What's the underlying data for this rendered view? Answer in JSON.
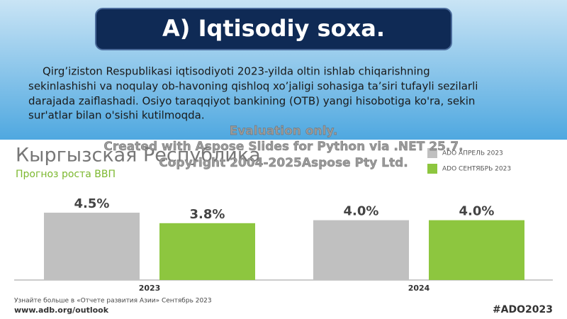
{
  "header": {
    "title": "A) Iqtisodiy soxa."
  },
  "paragraph": [
    "Qirg’iziston Respublikasi iqtisodiyoti 2023-yilda oltin ishlab chiqarishning",
    "sekinlashishi va noqulay ob-havoning qishloq xo’jaligi sohasiga ta’siri tufayli sezilarli",
    "darajada zaiflashadi. Osiyo taraqqiyot bankining (OTB) yangi hisobotiga ko'ra, sekin",
    "sur'atlar bilan o'sishi kutilmoqda."
  ],
  "watermark": [
    "Evaluation only.",
    "Created with Aspose Slides for Python via .NET 25.7.",
    "Copyright 2004-2025Aspose Pty Ltd."
  ],
  "chart_data": {
    "type": "bar",
    "title": "Кыргызская Республика",
    "subtitle": "Прогноз роста ВВП",
    "categories": [
      "2023",
      "2024"
    ],
    "series": [
      {
        "name": "ADO АПРЕЛЬ 2023",
        "color": "#c0c0c0",
        "values": [
          4.5,
          4.0
        ],
        "value_labels": [
          "4.5%",
          "4.0%"
        ]
      },
      {
        "name": "ADO СЕНТЯБРЬ 2023",
        "color": "#8dc63f",
        "values": [
          3.8,
          4.0
        ],
        "value_labels": [
          "3.8%",
          "4.0%"
        ]
      }
    ]
  },
  "footer": {
    "note": "Узнайте больше в «Отчете развития Азии» Сентябрь 2023",
    "url": "www.adb.org/outlook",
    "hashtag": "#ADO2023"
  }
}
